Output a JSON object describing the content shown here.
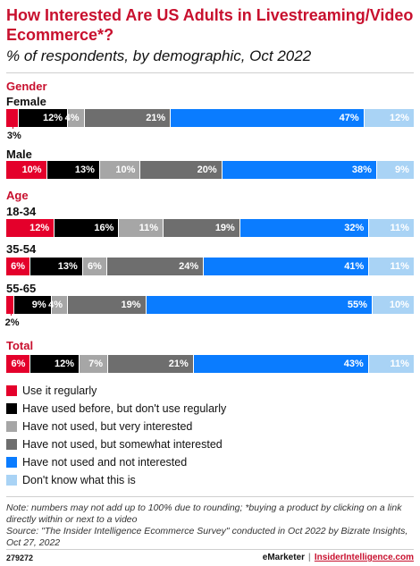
{
  "title": "How Interested Are US Adults in Livestreaming/Video Ecommerce*?",
  "subtitle": "% of respondents, by demographic, Oct 2022",
  "colors": {
    "accent": "#c8102e",
    "use_regularly": "#e4002b",
    "used_before": "#000000",
    "very_interested": "#a6a6a6",
    "somewhat_interested": "#6e6e6e",
    "not_interested": "#0a7cff",
    "dont_know": "#a9d3f5"
  },
  "chart_data": {
    "type": "bar",
    "orientation": "horizontal",
    "stacked": true,
    "title": "How Interested Are US Adults in Livestreaming/Video Ecommerce*?",
    "subtitle": "% of respondents, by demographic, Oct 2022",
    "series_names": [
      "Use it regularly",
      "Have used before, but don't use regularly",
      "Have not used, but very interested",
      "Have not used, but somewhat interested",
      "Have not used and not interested",
      "Don't know what this is"
    ],
    "groups": [
      {
        "name": "Gender",
        "rows": [
          {
            "label": "Female",
            "values": [
              3,
              12,
              4,
              21,
              47,
              12
            ],
            "labels": [
              "3%",
              "12%",
              "4%",
              "21%",
              "47%",
              "12%"
            ]
          },
          {
            "label": "Male",
            "values": [
              10,
              13,
              10,
              20,
              38,
              9
            ],
            "labels": [
              "10%",
              "13%",
              "10%",
              "20%",
              "38%",
              "9%"
            ]
          }
        ]
      },
      {
        "name": "Age",
        "rows": [
          {
            "label": "18-34",
            "values": [
              12,
              16,
              11,
              19,
              32,
              11
            ],
            "labels": [
              "12%",
              "16%",
              "11%",
              "19%",
              "32%",
              "11%"
            ]
          },
          {
            "label": "35-54",
            "values": [
              6,
              13,
              6,
              24,
              41,
              11
            ],
            "labels": [
              "6%",
              "13%",
              "6%",
              "24%",
              "41%",
              "11%"
            ]
          },
          {
            "label": "55-65",
            "values": [
              2,
              9,
              4,
              19,
              55,
              10
            ],
            "labels": [
              "2%",
              "9%",
              "4%",
              "19%",
              "55%",
              "10%"
            ]
          }
        ]
      },
      {
        "name": "Total",
        "rows": [
          {
            "label": "",
            "values": [
              6,
              12,
              7,
              21,
              43,
              11
            ],
            "labels": [
              "6%",
              "12%",
              "7%",
              "21%",
              "43%",
              "11%"
            ]
          }
        ]
      }
    ],
    "legend_position": "bottom",
    "grid": false
  },
  "note": "Note: numbers may not add up to 100% due to rounding; *buying a product by clicking on a link directly within or next to a video",
  "source": "Source: \"The Insider Intelligence Ecommerce Survey\" conducted in Oct 2022 by Bizrate Insights, Oct 27, 2022",
  "footer": {
    "chart_id": "279272",
    "brand1": "eMarketer",
    "separator": "|",
    "brand2": "InsiderIntelligence.com"
  }
}
